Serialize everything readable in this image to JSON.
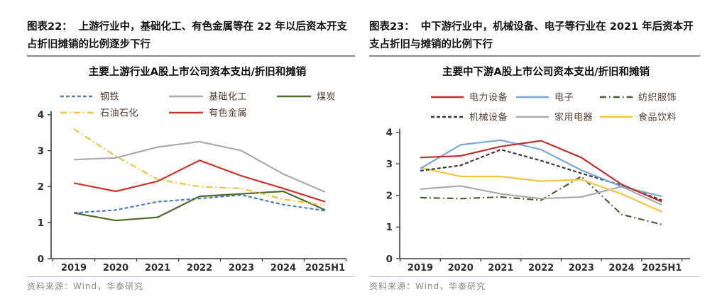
{
  "panels": [
    {
      "caption_label": "图表22：",
      "caption_text": "上游行业中，基础化工、有色金属等在 22 年以后资本开支占折旧摊销的比例逐步下行",
      "source": "资料来源：Wind，华泰研究"
    },
    {
      "caption_label": "图表23：",
      "caption_text": "中下游行业中，机械设备、电子等行业在 2021 年后资本开支占折旧与摊销的比例下行",
      "source": "资料来源：Wind，华泰研究"
    }
  ],
  "chart_data": [
    {
      "type": "line",
      "title": "主要上游行业A股上市公司资本支出/折旧和摊销",
      "categories": [
        "2019",
        "2020",
        "2021",
        "2022",
        "2023",
        "2024",
        "2025H1"
      ],
      "ylim": [
        0,
        4
      ],
      "yticks": [
        0,
        1,
        2,
        3,
        4
      ],
      "grid": false,
      "legend_position": "top",
      "axis_color": "#3f3f3f",
      "series": [
        {
          "name": "钢铁",
          "color": "#4d7ebf",
          "line_style": "dashed",
          "values": [
            1.27,
            1.35,
            1.58,
            1.67,
            1.77,
            1.5,
            1.33
          ]
        },
        {
          "name": "基础化工",
          "color": "#ababab",
          "line_style": "solid",
          "values": [
            2.75,
            2.8,
            3.1,
            3.25,
            3.0,
            2.35,
            1.85
          ]
        },
        {
          "name": "煤炭",
          "color": "#4f6b2f",
          "line_style": "solid",
          "values": [
            1.27,
            1.06,
            1.15,
            1.73,
            1.8,
            1.87,
            1.35
          ]
        },
        {
          "name": "石油石化",
          "color": "#f0c343",
          "line_style": "dashdot",
          "values": [
            3.6,
            2.85,
            2.2,
            2.0,
            1.95,
            1.65,
            1.48
          ]
        },
        {
          "name": "有色金属",
          "color": "#cc352b",
          "line_style": "solid",
          "values": [
            2.1,
            1.87,
            2.15,
            2.73,
            2.3,
            1.95,
            1.58
          ]
        }
      ]
    },
    {
      "type": "line",
      "title": "主要中下游A股上市公司资本支出/折旧和摊销",
      "categories": [
        "2019",
        "2020",
        "2021",
        "2022",
        "2023",
        "2024",
        "2025H1"
      ],
      "ylim": [
        0,
        4
      ],
      "yticks": [
        0,
        1,
        2,
        3,
        4
      ],
      "grid": false,
      "legend_position": "top",
      "axis_color": "#3f3f3f",
      "series": [
        {
          "name": "电力设备",
          "color": "#c0322e",
          "line_style": "solid",
          "values": [
            3.2,
            3.25,
            3.55,
            3.73,
            3.2,
            2.35,
            1.8
          ]
        },
        {
          "name": "电子",
          "color": "#79a7d9",
          "line_style": "solid",
          "values": [
            2.85,
            3.6,
            3.75,
            3.45,
            2.8,
            2.28,
            1.97
          ]
        },
        {
          "name": "纺织服饰",
          "color": "#4c5c38",
          "line_style": "dashdot",
          "values": [
            1.93,
            1.9,
            1.95,
            1.85,
            2.6,
            1.4,
            1.08
          ]
        },
        {
          "name": "机械设备",
          "color": "#3a3a3a",
          "line_style": "dashed",
          "values": [
            2.78,
            2.95,
            3.45,
            3.1,
            2.7,
            2.32,
            1.85
          ]
        },
        {
          "name": "家用电器",
          "color": "#ababab",
          "line_style": "solid",
          "values": [
            2.2,
            2.3,
            2.05,
            1.9,
            1.95,
            2.28,
            1.7
          ]
        },
        {
          "name": "食品饮料",
          "color": "#f4c445",
          "line_style": "solid",
          "values": [
            2.88,
            2.6,
            2.6,
            2.45,
            2.5,
            2.05,
            1.48
          ]
        }
      ]
    }
  ]
}
